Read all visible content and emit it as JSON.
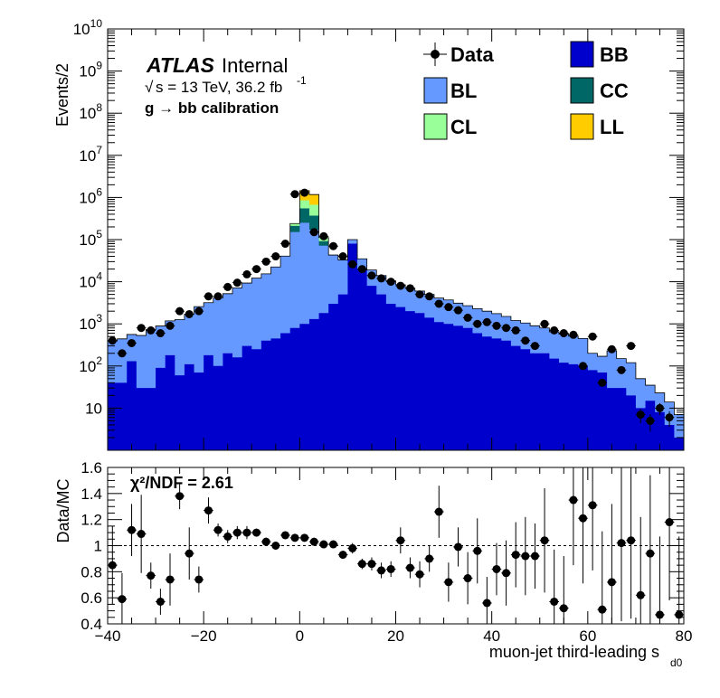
{
  "colors": {
    "BB": "#0000cc",
    "BL": "#6699ff",
    "CC": "#006666",
    "CL": "#99ff99",
    "LL": "#ffcc00",
    "data": "#000000"
  },
  "annotations": {
    "atlas": "ATLAS",
    "internal": "Internal",
    "energy": "s = 13 TeV, 36.2 fb",
    "energy_exp": "-1",
    "process": "g  → bb calibration",
    "chi2": "χ²/NDF = 2.61"
  },
  "chart_data": [
    {
      "type": "area",
      "stacked": true,
      "log_y": true,
      "ylabel": "Events/2",
      "xlim": [
        -40,
        80
      ],
      "ylim": [
        1,
        10000000000
      ],
      "y_ticks": [
        10,
        100,
        1000,
        10000,
        100000,
        1000000,
        10000000,
        100000000,
        1000000000,
        10000000000
      ],
      "y_tick_labels": [
        "10",
        "10^2",
        "10^3",
        "10^4",
        "10^5",
        "10^6",
        "10^7",
        "10^8",
        "10^9",
        "10^10"
      ],
      "x_ticks": [
        -40,
        -20,
        0,
        20,
        40,
        60,
        80
      ],
      "x_tick_labels": [
        "−40",
        "−20",
        "0",
        "20",
        "40",
        "60",
        "80"
      ],
      "legend": [
        "Data",
        "BB",
        "BL",
        "CC",
        "CL",
        "LL"
      ],
      "legend_position": "top-right",
      "bin_width": 2,
      "x_bin_edges_start": -40,
      "series": [
        {
          "name": "BB",
          "values": [
            40,
            40,
            130,
            30,
            30,
            90,
            180,
            60,
            110,
            70,
            180,
            100,
            200,
            160,
            300,
            250,
            400,
            450,
            600,
            800,
            1000,
            1300,
            1800,
            3000,
            5000,
            80000,
            20000,
            8000,
            5000,
            3000,
            2500,
            2000,
            1800,
            1400,
            1100,
            1000,
            900,
            800,
            600,
            500,
            450,
            400,
            300,
            250,
            200,
            200,
            150,
            120,
            110,
            100,
            80,
            70,
            30,
            30,
            20,
            10,
            15,
            8,
            4,
            2
          ]
        },
        {
          "name": "BL",
          "values": [
            350,
            400,
            430,
            500,
            700,
            800,
            1000,
            1200,
            1600,
            2500,
            3000,
            4000,
            5000,
            7000,
            9000,
            12000,
            15000,
            22000,
            40000,
            150000,
            250000,
            170000,
            70000,
            40000,
            28000,
            20000,
            15000,
            11000,
            9000,
            7500,
            6000,
            5000,
            4200,
            3600,
            3000,
            2700,
            2200,
            1900,
            1700,
            1500,
            1300,
            1100,
            900,
            800,
            700,
            600,
            500,
            450,
            400,
            350,
            120,
            100,
            200,
            120,
            100,
            40,
            20,
            15,
            10,
            5
          ]
        },
        {
          "name": "CC",
          "values": [
            0,
            0,
            0,
            0,
            0,
            0,
            0,
            0,
            0,
            0,
            0,
            0,
            0,
            0,
            0,
            0,
            0,
            0,
            0,
            60000,
            300000,
            200000,
            20000,
            0,
            0,
            0,
            0,
            0,
            0,
            0,
            0,
            0,
            0,
            0,
            0,
            0,
            0,
            0,
            0,
            0,
            0,
            0,
            0,
            0,
            0,
            0,
            0,
            0,
            0,
            0,
            0,
            0,
            0,
            0,
            0,
            0,
            0,
            0,
            0,
            0
          ]
        },
        {
          "name": "CL",
          "values": [
            0,
            0,
            0,
            0,
            0,
            0,
            0,
            0,
            0,
            0,
            0,
            0,
            0,
            0,
            0,
            0,
            0,
            0,
            0,
            30000,
            300000,
            300000,
            20000,
            0,
            0,
            0,
            0,
            0,
            0,
            0,
            0,
            0,
            0,
            0,
            0,
            0,
            0,
            0,
            0,
            0,
            0,
            0,
            0,
            0,
            0,
            0,
            0,
            0,
            0,
            0,
            0,
            0,
            0,
            0,
            0,
            0,
            0,
            0,
            0,
            0
          ]
        },
        {
          "name": "LL",
          "values": [
            0,
            0,
            0,
            0,
            0,
            0,
            0,
            0,
            0,
            0,
            0,
            0,
            0,
            0,
            0,
            0,
            0,
            0,
            0,
            0,
            600000,
            500000,
            0,
            0,
            0,
            0,
            0,
            0,
            0,
            0,
            0,
            0,
            0,
            0,
            0,
            0,
            0,
            0,
            0,
            0,
            0,
            0,
            0,
            0,
            0,
            0,
            0,
            0,
            0,
            0,
            0,
            0,
            0,
            0,
            0,
            0,
            0,
            0,
            0,
            0
          ]
        },
        {
          "name": "Data",
          "x": [
            -39,
            -37,
            -35,
            -33,
            -31,
            -29,
            -27,
            -25,
            -23,
            -21,
            -19,
            -17,
            -15,
            -13,
            -11,
            -9,
            -7,
            -5,
            -3,
            -1,
            1,
            3,
            5,
            7,
            9,
            11,
            13,
            15,
            17,
            19,
            21,
            23,
            25,
            27,
            29,
            31,
            33,
            35,
            37,
            39,
            41,
            43,
            45,
            47,
            49,
            51,
            53,
            55,
            57,
            59,
            61,
            63,
            65,
            67,
            69,
            71,
            73,
            75,
            77,
            79
          ],
          "values": [
            400,
            200,
            350,
            800,
            700,
            600,
            900,
            2000,
            1700,
            2000,
            4500,
            4500,
            7500,
            9500,
            15000,
            20000,
            30000,
            40000,
            80000,
            1200000,
            1300000,
            150000,
            120000,
            70000,
            40000,
            26000,
            20000,
            14000,
            12000,
            10000,
            8000,
            7000,
            5000,
            4500,
            3000,
            2500,
            2100,
            1400,
            1000,
            1100,
            900,
            800,
            700,
            400,
            300,
            1000,
            700,
            600,
            550,
            100,
            500,
            40,
            250,
            80,
            300,
            7,
            5,
            10,
            6,
            0
          ]
        }
      ]
    },
    {
      "type": "scatter",
      "ylabel": "Data/MC",
      "xlabel": "muon-jet third-leading s",
      "xlabel_sub": "d0",
      "xlim": [
        -40,
        80
      ],
      "ylim": [
        0.4,
        1.6
      ],
      "y_ticks": [
        0.4,
        0.6,
        0.8,
        1.0,
        1.2,
        1.4,
        1.6
      ],
      "y_tick_labels": [
        "0.4",
        "0.6",
        "0.8",
        "1",
        "1.2",
        "1.4",
        "1.6"
      ],
      "x_ticks": [
        -40,
        -20,
        0,
        20,
        40,
        60,
        80
      ],
      "x_tick_labels": [
        "−40",
        "−20",
        "0",
        "20",
        "40",
        "60",
        "80"
      ],
      "reference_line": 1.0,
      "series": [
        {
          "name": "Data/MC",
          "x": [
            -39,
            -37,
            -35,
            -33,
            -31,
            -29,
            -27,
            -25,
            -23,
            -21,
            -19,
            -17,
            -15,
            -13,
            -11,
            -9,
            -7,
            -5,
            -3,
            -1,
            1,
            3,
            5,
            7,
            9,
            11,
            13,
            15,
            17,
            19,
            21,
            23,
            25,
            27,
            29,
            31,
            33,
            35,
            37,
            39,
            41,
            43,
            45,
            47,
            49,
            51,
            53,
            55,
            57,
            59,
            61,
            63,
            65,
            67,
            69,
            71,
            73,
            75,
            77,
            79
          ],
          "values": [
            0.85,
            0.59,
            1.12,
            1.09,
            0.77,
            0.57,
            0.74,
            1.38,
            0.94,
            0.74,
            1.27,
            1.12,
            1.07,
            1.1,
            1.1,
            1.1,
            1.03,
            1.0,
            1.08,
            1.06,
            1.06,
            1.03,
            1.01,
            1.01,
            0.93,
            0.98,
            0.86,
            0.86,
            0.81,
            0.82,
            1.04,
            0.83,
            0.78,
            0.9,
            1.26,
            0.72,
            0.99,
            0.75,
            0.96,
            0.56,
            0.82,
            0.79,
            0.93,
            0.92,
            0.92,
            1.04,
            0.57,
            0.52,
            1.35,
            1.21,
            1.31,
            0.51,
            0.72,
            1.02,
            1.04,
            0.62,
            0.94,
            0.47,
            1.18,
            0.47
          ],
          "errors": [
            0.3,
            0.2,
            0.2,
            0.3,
            0.1,
            0.1,
            0.2,
            0.1,
            0.2,
            0.1,
            0.1,
            0.05,
            0.05,
            0.05,
            0.05,
            0.03,
            0.03,
            0.03,
            0.02,
            0.01,
            0.01,
            0.01,
            0.01,
            0.02,
            0.03,
            0.04,
            0.04,
            0.05,
            0.06,
            0.06,
            0.1,
            0.08,
            0.1,
            0.1,
            0.2,
            0.15,
            0.15,
            0.2,
            0.25,
            0.2,
            0.2,
            0.25,
            0.25,
            0.3,
            0.25,
            0.4,
            0.4,
            0.4,
            0.5,
            0.5,
            0.5,
            0.6,
            0.6,
            0.6,
            0.6,
            0.6,
            0.6,
            0.6,
            0.6,
            0.6
          ]
        }
      ]
    }
  ]
}
